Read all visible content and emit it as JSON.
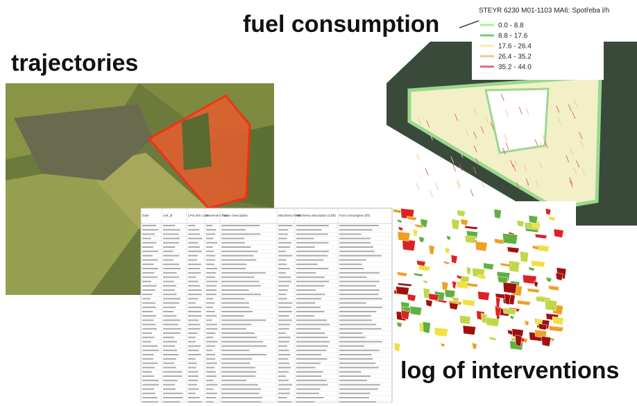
{
  "labels": {
    "trajectories": "trajectories",
    "fuel": "fuel consumption",
    "log": "log of interventions"
  },
  "fuel_legend": {
    "title": "STEYR 6230 M01-1103 MA6: Spotřeba l/h",
    "items": [
      {
        "label": "0.0 - 8.8",
        "color": "#a8f0a0"
      },
      {
        "label": "8.8 - 17.6",
        "color": "#78c878"
      },
      {
        "label": "17.6 - 26.4",
        "color": "#f4f0a0"
      },
      {
        "label": "26.4 - 35.2",
        "color": "#f0c890"
      },
      {
        "label": "35.2 - 44.0",
        "color": "#e06878"
      }
    ]
  },
  "table": {
    "headers": [
      "Date",
      "unit_id",
      "LPIS site code",
      "Movement Time",
      "Tractor Description",
      "Machinery RFID",
      "Machinery description (CZE)",
      "Fuel consumption (l/h)"
    ]
  }
}
